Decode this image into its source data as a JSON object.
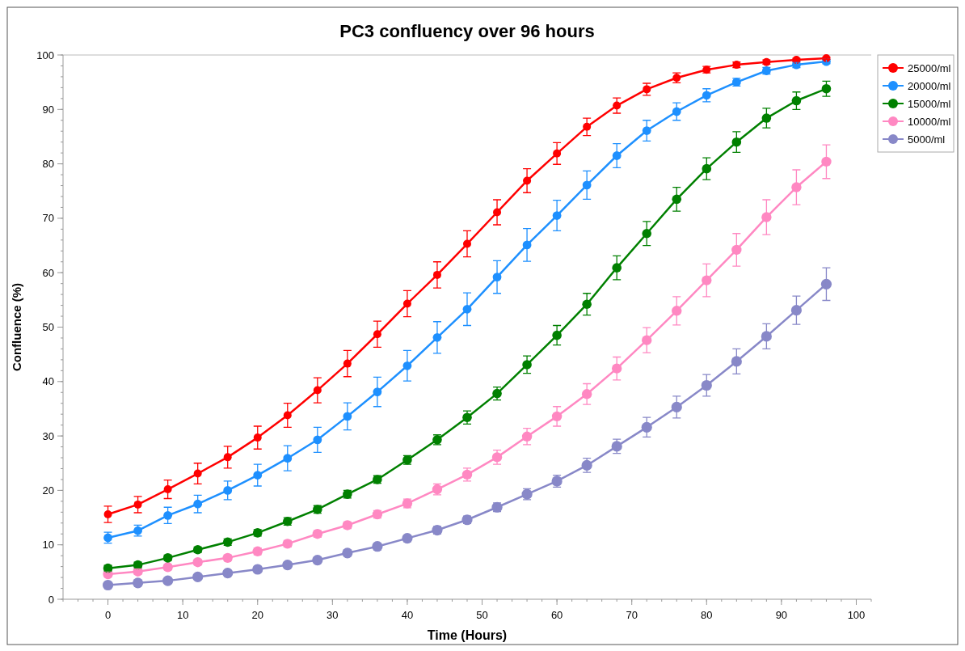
{
  "chart_data": {
    "type": "line",
    "title": "PC3 confluency over 96 hours",
    "xlabel": "Time (Hours)",
    "ylabel": "Confluence (%)",
    "x": [
      0,
      4,
      8,
      12,
      16,
      20,
      24,
      28,
      32,
      36,
      40,
      44,
      48,
      52,
      56,
      60,
      64,
      68,
      72,
      76,
      80,
      84,
      88,
      92,
      96
    ],
    "xlim": [
      -6,
      102
    ],
    "xticks": [
      0,
      10,
      20,
      30,
      40,
      50,
      60,
      70,
      80,
      90,
      100
    ],
    "ylim": [
      0,
      100
    ],
    "yticks": [
      0,
      10,
      20,
      30,
      40,
      50,
      60,
      70,
      80,
      90,
      100
    ],
    "grid": false,
    "legend": "top right",
    "marker": "circle",
    "line_style": "solid",
    "series": [
      {
        "name": "25000/ml",
        "color": "#ff0000",
        "values": [
          15.6,
          17.4,
          20.2,
          23.1,
          26.1,
          29.7,
          33.8,
          38.4,
          43.3,
          48.7,
          54.3,
          59.6,
          65.3,
          71.1,
          76.9,
          81.9,
          86.8,
          90.7,
          93.7,
          95.8,
          97.3,
          98.2,
          98.7,
          99.1,
          99.4
        ],
        "errors": [
          1.5,
          1.5,
          1.7,
          1.9,
          2.0,
          2.1,
          2.2,
          2.3,
          2.4,
          2.4,
          2.4,
          2.4,
          2.4,
          2.3,
          2.2,
          2.0,
          1.6,
          1.4,
          1.1,
          0.9,
          0.6,
          0.5,
          0.4,
          0.3,
          0.2
        ]
      },
      {
        "name": "20000/ml",
        "color": "#1e90ff",
        "values": [
          11.3,
          12.6,
          15.4,
          17.5,
          20.0,
          22.8,
          25.9,
          29.3,
          33.6,
          38.1,
          42.9,
          48.1,
          53.3,
          59.2,
          65.1,
          70.5,
          76.1,
          81.5,
          86.1,
          89.6,
          92.6,
          95.0,
          97.1,
          98.2,
          98.8
        ],
        "errors": [
          1.0,
          1.0,
          1.5,
          1.6,
          1.7,
          2.0,
          2.3,
          2.3,
          2.5,
          2.7,
          2.8,
          2.9,
          3.0,
          3.0,
          3.0,
          2.8,
          2.6,
          2.2,
          1.9,
          1.6,
          1.2,
          0.7,
          0.6,
          0.5,
          0.4
        ]
      },
      {
        "name": "15000/ml",
        "color": "#008000",
        "values": [
          5.7,
          6.3,
          7.6,
          9.1,
          10.5,
          12.2,
          14.3,
          16.5,
          19.3,
          22.0,
          25.6,
          29.3,
          33.4,
          37.8,
          43.1,
          48.5,
          54.2,
          60.9,
          67.2,
          73.5,
          79.1,
          84.0,
          88.4,
          91.6,
          93.8
        ],
        "errors": [
          0.5,
          0.5,
          0.5,
          0.5,
          0.6,
          0.6,
          0.7,
          0.7,
          0.7,
          0.7,
          0.8,
          0.9,
          1.2,
          1.2,
          1.6,
          1.8,
          2.0,
          2.2,
          2.2,
          2.2,
          2.0,
          1.9,
          1.8,
          1.6,
          1.4
        ]
      },
      {
        "name": "10000/ml",
        "color": "#ff88c2",
        "values": [
          4.6,
          5.1,
          5.9,
          6.8,
          7.6,
          8.8,
          10.2,
          12.0,
          13.6,
          15.6,
          17.6,
          20.2,
          22.9,
          26.1,
          29.9,
          33.6,
          37.7,
          42.4,
          47.6,
          53.0,
          58.6,
          64.2,
          70.2,
          75.7,
          80.4
        ],
        "errors": [
          0.5,
          0.5,
          0.5,
          0.5,
          0.5,
          0.6,
          0.6,
          0.6,
          0.6,
          0.7,
          0.8,
          1.0,
          1.2,
          1.3,
          1.5,
          1.8,
          1.9,
          2.1,
          2.3,
          2.6,
          3.0,
          3.0,
          3.2,
          3.2,
          3.1
        ]
      },
      {
        "name": "5000/ml",
        "color": "#8888c8",
        "values": [
          2.6,
          3.0,
          3.4,
          4.1,
          4.8,
          5.5,
          6.3,
          7.2,
          8.5,
          9.7,
          11.2,
          12.7,
          14.6,
          16.9,
          19.3,
          21.7,
          24.6,
          28.1,
          31.6,
          35.3,
          39.3,
          43.7,
          48.3,
          53.1,
          57.9
        ],
        "errors": [
          0.3,
          0.3,
          0.3,
          0.4,
          0.4,
          0.4,
          0.5,
          0.5,
          0.5,
          0.6,
          0.6,
          0.7,
          0.7,
          0.8,
          1.0,
          1.1,
          1.3,
          1.3,
          1.8,
          2.0,
          2.0,
          2.3,
          2.3,
          2.6,
          3.0
        ]
      }
    ]
  }
}
